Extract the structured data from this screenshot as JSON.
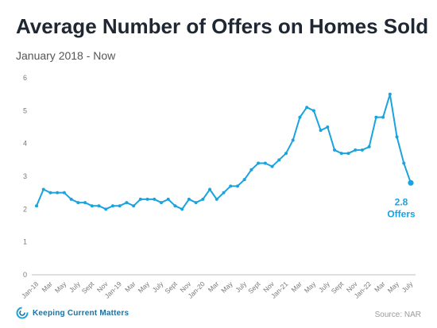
{
  "header": {
    "title": "Average Number of Offers on Homes Sold",
    "subtitle": "January 2018 - Now"
  },
  "footer": {
    "brand": "Keeping Current Matters",
    "source": "Source: NAR"
  },
  "chart_data": {
    "type": "line",
    "title": "Average Number of Offers on Homes Sold",
    "subtitle": "January 2018 - Now",
    "xlabel": "",
    "ylabel": "",
    "ylim": [
      0,
      6
    ],
    "yticks": [
      0,
      1,
      2,
      3,
      4,
      5,
      6
    ],
    "grid": false,
    "color": "#1aa3de",
    "x": [
      "Jan-18",
      "Feb-18",
      "Mar",
      "Apr-18",
      "May",
      "Jun-18",
      "July",
      "Aug-18",
      "Sept",
      "Oct-18",
      "Nov",
      "Dec-18",
      "Jan-19",
      "Feb-19",
      "Mar",
      "Apr-19",
      "May",
      "Jun-19",
      "July",
      "Aug-19",
      "Sept",
      "Oct-19",
      "Nov",
      "Dec-19",
      "Jan-20",
      "Feb-20",
      "Mar",
      "Apr-20",
      "May",
      "Jun-20",
      "July",
      "Aug-20",
      "Sept",
      "Oct-20",
      "Nov",
      "Dec-20",
      "Jan-21",
      "Feb-21",
      "Mar",
      "Apr-21",
      "May",
      "Jun-21",
      "July",
      "Aug-21",
      "Sept",
      "Oct-21",
      "Nov",
      "Dec-21",
      "Jan-22",
      "Feb-22",
      "Mar",
      "Apr-22",
      "May",
      "Jun-22",
      "July"
    ],
    "xticks": [
      "Jan-18",
      "Mar",
      "May",
      "July",
      "Sept",
      "Nov",
      "Jan-19",
      "Mar",
      "May",
      "July",
      "Sept",
      "Nov",
      "Jan-20",
      "Mar",
      "May",
      "July",
      "Sept",
      "Nov",
      "Jan-21",
      "Mar",
      "May",
      "July",
      "Sept",
      "Nov",
      "Jan-22",
      "Mar",
      "May",
      "July"
    ],
    "values": [
      2.1,
      2.6,
      2.5,
      2.5,
      2.5,
      2.3,
      2.2,
      2.2,
      2.1,
      2.1,
      2.0,
      2.1,
      2.1,
      2.2,
      2.1,
      2.3,
      2.3,
      2.3,
      2.2,
      2.3,
      2.1,
      2.0,
      2.3,
      2.2,
      2.3,
      2.6,
      2.3,
      2.5,
      2.7,
      2.7,
      2.9,
      3.2,
      3.4,
      3.4,
      3.3,
      3.5,
      3.7,
      4.1,
      4.8,
      5.1,
      5.0,
      4.4,
      4.5,
      3.8,
      3.7,
      3.7,
      3.8,
      3.8,
      3.9,
      4.8,
      4.8,
      5.5,
      4.2,
      3.4,
      2.8
    ],
    "annotation": {
      "value_text": "2.8",
      "label_text": "Offers"
    }
  }
}
